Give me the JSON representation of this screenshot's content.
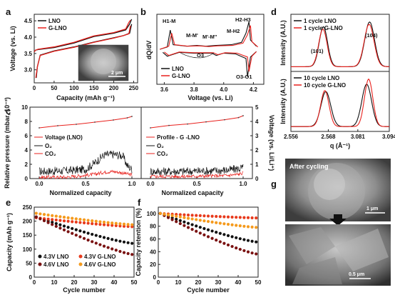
{
  "chart_data": [
    {
      "panel": "a",
      "type": "line",
      "xlabel": "Capacity (mAh g⁻¹)",
      "ylabel": "Voltage (vs. Li)",
      "xlim": [
        0,
        260
      ],
      "ylim": [
        2.6,
        4.7
      ],
      "xticks": [
        "0",
        "50",
        "100",
        "150",
        "200",
        "250"
      ],
      "yticks": [
        "3.0",
        "3.5",
        "4.0",
        "4.5"
      ],
      "inset_scalebar": "2 μm",
      "series": [
        {
          "name": "LNO",
          "color": "#111111",
          "charge": [
            [
              0,
              3.55
            ],
            [
              3,
              3.6
            ],
            [
              10,
              3.62
            ],
            [
              50,
              3.68
            ],
            [
              100,
              3.82
            ],
            [
              150,
              4.02
            ],
            [
              200,
              4.12
            ],
            [
              230,
              4.22
            ],
            [
              240,
              4.4
            ],
            [
              245,
              4.55
            ]
          ],
          "discharge": [
            [
              245,
              4.4
            ],
            [
              240,
              4.12
            ],
            [
              225,
              4.05
            ],
            [
              200,
              3.98
            ],
            [
              150,
              3.85
            ],
            [
              100,
              3.7
            ],
            [
              50,
              3.58
            ],
            [
              15,
              3.45
            ],
            [
              8,
              3.1
            ],
            [
              5,
              2.75
            ]
          ]
        },
        {
          "name": "G-LNO",
          "color": "#e8201c",
          "charge": [
            [
              0,
              3.55
            ],
            [
              3,
              3.6
            ],
            [
              10,
              3.63
            ],
            [
              50,
              3.7
            ],
            [
              100,
              3.84
            ],
            [
              150,
              4.04
            ],
            [
              200,
              4.14
            ],
            [
              230,
              4.25
            ],
            [
              238,
              4.45
            ],
            [
              242,
              4.52
            ]
          ],
          "discharge": [
            [
              242,
              4.35
            ],
            [
              238,
              4.1
            ],
            [
              222,
              4.04
            ],
            [
              200,
              3.97
            ],
            [
              150,
              3.84
            ],
            [
              100,
              3.69
            ],
            [
              50,
              3.57
            ],
            [
              15,
              3.44
            ],
            [
              8,
              3.1
            ],
            [
              4,
              2.75
            ]
          ]
        }
      ]
    },
    {
      "panel": "b",
      "type": "line",
      "xlabel": "Voltage (vs. Li)",
      "ylabel": "dQ/dV",
      "xlim": [
        3.55,
        4.27
      ],
      "xticks": [
        "3.6",
        "3.8",
        "4.0",
        "4.2"
      ],
      "annotations": [
        "H1-M",
        "M-M'",
        "M'-M''",
        "M-H2",
        "H2-H3",
        "O3",
        "O3-O1"
      ],
      "series": [
        {
          "name": "LNO",
          "color": "#111111",
          "charge": [
            [
              3.57,
              0
            ],
            [
              3.62,
              0.3
            ],
            [
              3.64,
              2.5
            ],
            [
              3.66,
              0.6
            ],
            [
              3.75,
              0.4
            ],
            [
              3.82,
              0.5
            ],
            [
              3.88,
              0.4
            ],
            [
              3.95,
              0.5
            ],
            [
              4.05,
              0.6
            ],
            [
              4.12,
              0.9
            ],
            [
              4.15,
              2.1
            ],
            [
              4.17,
              3.6
            ],
            [
              4.18,
              1.2
            ],
            [
              4.22,
              0.4
            ]
          ],
          "discharge": [
            [
              4.22,
              -0.3
            ],
            [
              4.18,
              -1.0
            ],
            [
              4.16,
              -3.6
            ],
            [
              4.15,
              -1.2
            ],
            [
              4.08,
              -0.6
            ],
            [
              4.0,
              -0.5
            ],
            [
              3.95,
              -0.8
            ],
            [
              3.92,
              -0.5
            ],
            [
              3.8,
              -0.5
            ],
            [
              3.7,
              -0.4
            ],
            [
              3.62,
              -0.9
            ],
            [
              3.59,
              -0.4
            ]
          ]
        },
        {
          "name": "G-LNO",
          "color": "#e8201c",
          "charge": [
            [
              3.57,
              0
            ],
            [
              3.63,
              0.4
            ],
            [
              3.65,
              2.1
            ],
            [
              3.67,
              0.6
            ],
            [
              3.76,
              0.4
            ],
            [
              3.83,
              0.45
            ],
            [
              3.9,
              0.35
            ],
            [
              3.96,
              0.45
            ],
            [
              4.06,
              0.5
            ],
            [
              4.13,
              0.8
            ],
            [
              4.16,
              1.9
            ],
            [
              4.18,
              3.1
            ],
            [
              4.19,
              1.0
            ],
            [
              4.23,
              0.3
            ]
          ],
          "discharge": [
            [
              4.22,
              -0.3
            ],
            [
              4.19,
              -0.9
            ],
            [
              4.17,
              -2.9
            ],
            [
              4.16,
              -1.0
            ],
            [
              4.09,
              -0.5
            ],
            [
              4.01,
              -0.45
            ],
            [
              3.96,
              -0.7
            ],
            [
              3.93,
              -0.45
            ],
            [
              3.8,
              -0.45
            ],
            [
              3.7,
              -0.35
            ],
            [
              3.63,
              -0.8
            ],
            [
              3.6,
              -0.35
            ]
          ]
        }
      ]
    },
    {
      "panel": "c",
      "type": "line",
      "xlabel": "Normalized capacity",
      "ylabel": "Relative pressure (mbar, 10⁻³)",
      "ylabel_right": "Voltage (vs. Li/Li⁺)",
      "xticks": [
        "0.0",
        "0.5",
        "1.0"
      ],
      "yticks": [
        "0",
        "2",
        "4",
        "6",
        "8",
        "10"
      ],
      "yticks_right": [
        "0",
        "1",
        "2",
        "3",
        "4",
        "5"
      ],
      "subpanels": [
        {
          "legend": [
            "Voltage (LNO)",
            "O₂",
            "CO₂"
          ],
          "voltage": [
            [
              0,
              3.55
            ],
            [
              0.2,
              3.7
            ],
            [
              0.4,
              3.8
            ],
            [
              0.6,
              3.95
            ],
            [
              0.8,
              4.1
            ],
            [
              0.95,
              4.25
            ],
            [
              1.0,
              4.35
            ]
          ],
          "O2": [
            [
              0,
              1.0
            ],
            [
              0.3,
              1.1
            ],
            [
              0.5,
              1.3
            ],
            [
              0.6,
              2.2
            ],
            [
              0.7,
              3.3
            ],
            [
              0.8,
              3.4
            ],
            [
              0.9,
              3.2
            ],
            [
              0.95,
              1.8
            ],
            [
              1.0,
              1.3
            ]
          ],
          "CO2": [
            [
              0,
              0.2
            ],
            [
              0.3,
              0.2
            ],
            [
              0.6,
              0.6
            ],
            [
              0.7,
              0.9
            ],
            [
              0.8,
              1.0
            ],
            [
              0.9,
              0.8
            ],
            [
              1.0,
              0.5
            ]
          ]
        },
        {
          "legend": [
            "Profile - G -LNO",
            "O₂",
            "CO₂"
          ],
          "voltage": [
            [
              0,
              3.55
            ],
            [
              0.2,
              3.72
            ],
            [
              0.4,
              3.82
            ],
            [
              0.6,
              3.97
            ],
            [
              0.8,
              4.12
            ],
            [
              0.95,
              4.27
            ],
            [
              1.0,
              4.4
            ]
          ],
          "O2": [
            [
              0,
              1.0
            ],
            [
              0.3,
              1.0
            ],
            [
              0.5,
              1.05
            ],
            [
              0.7,
              1.1
            ],
            [
              0.85,
              1.2
            ],
            [
              0.95,
              1.4
            ],
            [
              1.0,
              1.5
            ]
          ],
          "CO2": [
            [
              0,
              0.3
            ],
            [
              0.3,
              0.3
            ],
            [
              0.6,
              0.35
            ],
            [
              0.8,
              0.4
            ],
            [
              0.95,
              0.6
            ],
            [
              1.0,
              0.8
            ]
          ]
        }
      ]
    },
    {
      "panel": "d",
      "type": "line",
      "xlabel": "q (Å⁻¹)",
      "ylabel": "Intensity (A.U.)",
      "xticks": [
        "2.556",
        "2.568",
        "3.081",
        "3.094"
      ],
      "peak_labels": [
        "(101)",
        "(104)"
      ],
      "subpanels": [
        {
          "series": [
            {
              "name": "1 cycle LNO",
              "color": "#111111",
              "peaks": [
                {
                  "pos": 0.33,
                  "height": 0.85,
                  "width": 0.06
                },
                {
                  "pos": 0.8,
                  "height": 0.95,
                  "width": 0.07
                }
              ]
            },
            {
              "name": "1 cycle G-LNO",
              "color": "#e8201c",
              "peaks": [
                {
                  "pos": 0.325,
                  "height": 0.8,
                  "width": 0.06
                },
                {
                  "pos": 0.795,
                  "height": 0.9,
                  "width": 0.07
                }
              ]
            }
          ]
        },
        {
          "series": [
            {
              "name": "10 cycle LNO",
              "color": "#111111",
              "peaks": [
                {
                  "pos": 0.355,
                  "height": 0.7,
                  "width": 0.07
                },
                {
                  "pos": 0.77,
                  "height": 0.85,
                  "width": 0.07
                }
              ]
            },
            {
              "name": "10 cycle G-LNO",
              "color": "#e8201c",
              "peaks": [
                {
                  "pos": 0.345,
                  "height": 0.72,
                  "width": 0.06
                },
                {
                  "pos": 0.79,
                  "height": 0.95,
                  "width": 0.06
                }
              ]
            }
          ]
        }
      ]
    },
    {
      "panel": "e",
      "type": "scatter",
      "xlabel": "Cycle number",
      "ylabel": "Capacity (mAh g⁻¹)",
      "xlim": [
        0,
        50
      ],
      "ylim": [
        0,
        250
      ],
      "xticks": [
        "0",
        "10",
        "20",
        "30",
        "40",
        "50"
      ],
      "yticks": [
        "0",
        "50",
        "100",
        "150",
        "200",
        "250"
      ],
      "series": [
        {
          "name": "4.3V LNO",
          "color": "#111111",
          "start": 215,
          "end": 120
        },
        {
          "name": "4.3V G-LNO",
          "color": "#e83a1c",
          "start": 212,
          "end": 180
        },
        {
          "name": "4.6V LNO",
          "color": "#7a1212",
          "start": 215,
          "end": 80
        },
        {
          "name": "4.6V G-LNO",
          "color": "#f59a1c",
          "start": 228,
          "end": 187
        }
      ]
    },
    {
      "panel": "f",
      "type": "scatter",
      "xlabel": "Cycle number",
      "ylabel": "Capacity retention (%)",
      "xlim": [
        0,
        50
      ],
      "ylim": [
        0,
        110
      ],
      "xticks": [
        "0",
        "10",
        "20",
        "30",
        "40",
        "50"
      ],
      "yticks": [
        "0",
        "20",
        "40",
        "60",
        "80",
        "100"
      ],
      "series": [
        {
          "name": "4.3V LNO",
          "color": "#111111",
          "start": 100,
          "end": 55
        },
        {
          "name": "4.3V G-LNO",
          "color": "#e83a1c",
          "start": 100,
          "end": 93
        },
        {
          "name": "4.6V LNO",
          "color": "#7a1212",
          "start": 100,
          "end": 36
        },
        {
          "name": "4.6V G-LNO",
          "color": "#f59a1c",
          "start": 100,
          "end": 78
        }
      ]
    }
  ],
  "panel_g": {
    "label": "g",
    "top_caption": "After cycling",
    "scalebar_top": "1 μm",
    "scalebar_bottom": "0.5 μm"
  },
  "panel_labels": [
    "a",
    "b",
    "c",
    "d",
    "e",
    "f",
    "g"
  ]
}
